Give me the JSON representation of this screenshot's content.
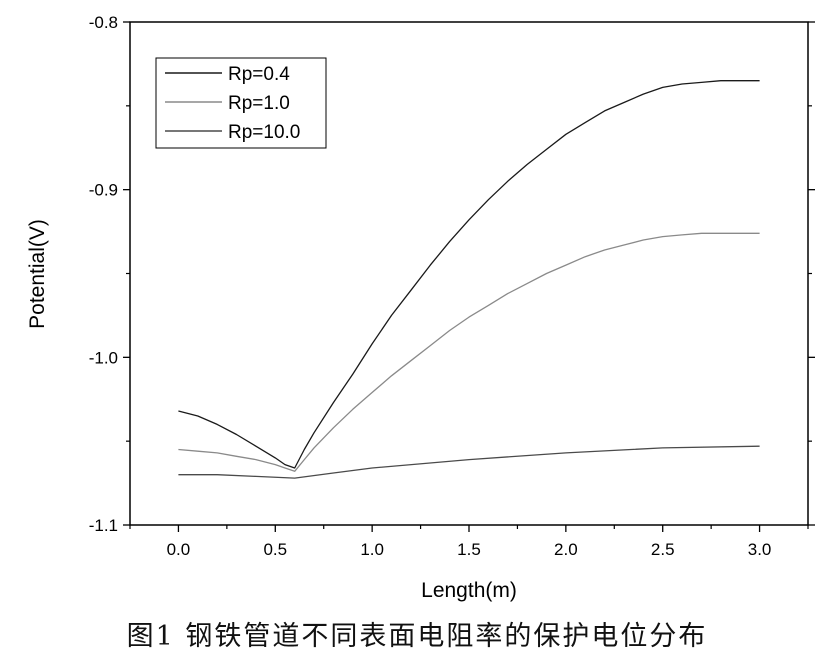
{
  "caption": "图1 钢铁管道不同表面电阻率的保护电位分布",
  "chart_data": {
    "type": "line",
    "xlabel": "Length(m)",
    "ylabel": "Potential(V)",
    "xlim": [
      -0.25,
      3.25
    ],
    "ylim": [
      -1.1,
      -0.8
    ],
    "xticks": [
      0.0,
      0.5,
      1.0,
      1.5,
      2.0,
      2.5,
      3.0
    ],
    "xtick_labels": [
      "0.0",
      "0.5",
      "1.0",
      "1.5",
      "2.0",
      "2.5",
      "3.0"
    ],
    "yticks": [
      -0.8,
      -0.9,
      -1.0,
      -1.1
    ],
    "ytick_labels": [
      "-0.8",
      "-0.9",
      "-1.0",
      "-1.1"
    ],
    "grid": false,
    "legend_position": "top-left",
    "series": [
      {
        "name": "Rp=0.4",
        "color": "#1a1a1a",
        "x": [
          0.0,
          0.1,
          0.2,
          0.3,
          0.4,
          0.5,
          0.55,
          0.6,
          0.65,
          0.7,
          0.8,
          0.9,
          1.0,
          1.1,
          1.2,
          1.3,
          1.4,
          1.5,
          1.6,
          1.7,
          1.8,
          1.9,
          2.0,
          2.1,
          2.2,
          2.3,
          2.4,
          2.5,
          2.6,
          2.7,
          2.8,
          2.9,
          3.0
        ],
        "y": [
          -1.032,
          -1.035,
          -1.04,
          -1.046,
          -1.053,
          -1.06,
          -1.064,
          -1.066,
          -1.055,
          -1.045,
          -1.027,
          -1.01,
          -0.992,
          -0.975,
          -0.96,
          -0.945,
          -0.931,
          -0.918,
          -0.906,
          -0.895,
          -0.885,
          -0.876,
          -0.867,
          -0.86,
          -0.853,
          -0.848,
          -0.843,
          -0.839,
          -0.837,
          -0.836,
          -0.835,
          -0.835,
          -0.835
        ]
      },
      {
        "name": "Rp=1.0",
        "color": "#8a8a8a",
        "x": [
          0.0,
          0.1,
          0.2,
          0.3,
          0.4,
          0.5,
          0.55,
          0.6,
          0.65,
          0.7,
          0.8,
          0.9,
          1.0,
          1.1,
          1.2,
          1.3,
          1.4,
          1.5,
          1.6,
          1.7,
          1.8,
          1.9,
          2.0,
          2.1,
          2.2,
          2.3,
          2.4,
          2.5,
          2.6,
          2.7,
          2.8,
          2.9,
          3.0
        ],
        "y": [
          -1.055,
          -1.056,
          -1.057,
          -1.059,
          -1.061,
          -1.064,
          -1.066,
          -1.068,
          -1.061,
          -1.054,
          -1.042,
          -1.031,
          -1.021,
          -1.011,
          -1.002,
          -0.993,
          -0.984,
          -0.976,
          -0.969,
          -0.962,
          -0.956,
          -0.95,
          -0.945,
          -0.94,
          -0.936,
          -0.933,
          -0.93,
          -0.928,
          -0.927,
          -0.926,
          -0.926,
          -0.926,
          -0.926
        ]
      },
      {
        "name": "Rp=10.0",
        "color": "#4a4a4a",
        "x": [
          0.0,
          0.2,
          0.4,
          0.6,
          0.8,
          1.0,
          1.5,
          2.0,
          2.5,
          3.0
        ],
        "y": [
          -1.07,
          -1.07,
          -1.071,
          -1.072,
          -1.069,
          -1.066,
          -1.061,
          -1.057,
          -1.054,
          -1.053
        ]
      }
    ]
  }
}
